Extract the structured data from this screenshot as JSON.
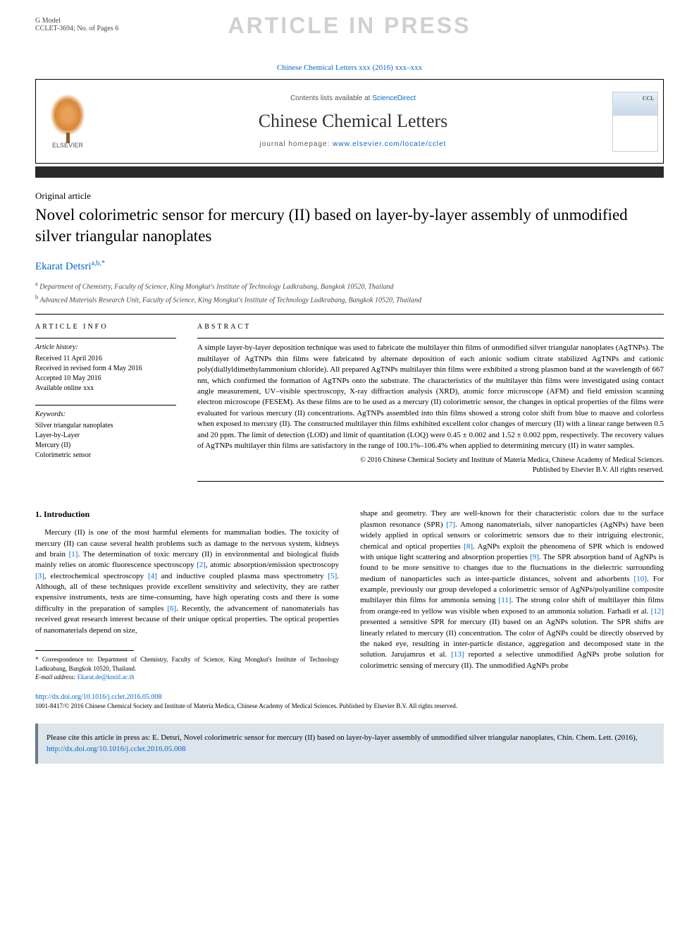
{
  "gmodel": {
    "l1": "G Model",
    "l2": "CCLET-3694; No. of Pages 6"
  },
  "watermark": "ARTICLE IN PRESS",
  "journal_ref": "Chinese Chemical Letters xxx (2016) xxx–xxx",
  "header": {
    "elsevier": "ELSEVIER",
    "contents_pre": "Contents lists available at ",
    "contents_link": "ScienceDirect",
    "journal": "Chinese Chemical Letters",
    "homepage_pre": "journal homepage: ",
    "homepage_url": "www.elsevier.com/locate/cclet"
  },
  "article_type": "Original article",
  "title": "Novel colorimetric sensor for mercury (II) based on layer-by-layer assembly of unmodified silver triangular nanoplates",
  "author": {
    "name": "Ekarat Detsri",
    "sup": "a,b,",
    "corr": "*"
  },
  "affiliations": {
    "a": "Department of Chemistry, Faculty of Science, King Mongkut's Institute of Technology Ladkrabang, Bangkok 10520, Thailand",
    "b": "Advanced Materials Research Unit, Faculty of Science, King Mongkut's Institute of Technology Ladkrabang, Bangkok 10520, Thailand"
  },
  "info": {
    "head": "ARTICLE INFO",
    "history_h": "Article history:",
    "h1": "Received 11 April 2016",
    "h2": "Received in revised form 4 May 2016",
    "h3": "Accepted 10 May 2016",
    "h4": "Available online xxx",
    "kw_h": "Keywords:",
    "k1": "Silver triangular nanoplates",
    "k2": "Layer-by-Layer",
    "k3": "Mercury (II)",
    "k4": "Colorimetric sensor"
  },
  "abstract": {
    "head": "ABSTRACT",
    "text": "A simple layer-by-layer deposition technique was used to fabricate the multilayer thin films of unmodified silver triangular nanoplates (AgTNPs). The multilayer of AgTNPs thin films were fabricated by alternate deposition of each anionic sodium citrate stabilized AgTNPs and cationic poly(diallyldimethylammonium chloride). All prepared AgTNPs multilayer thin films were exhibited a strong plasmon band at the wavelength of 667 nm, which confirmed the formation of AgTNPs onto the substrate. The characteristics of the multilayer thin films were investigated using contact angle measurement, UV–visible spectroscopy, X-ray diffraction analysis (XRD), atomic force microscope (AFM) and field emission scanning electron microscope (FESEM). As these films are to be used as a mercury (II) colorimetric sensor, the changes in optical properties of the films were evaluated for various mercury (II) concentrations. AgTNPs assembled into thin films showed a strong color shift from blue to mauve and colorless when exposed to mercury (II). The constructed multilayer thin films exhibited excellent color changes of mercury (II) with a linear range between 0.5 and 20 ppm. The limit of detection (LOD) and limit of quantitation (LOQ) were 0.45 ± 0.002 and 1.52 ± 0.002 ppm, respectively. The recovery values of AgTNPs multilayer thin films are satisfactory in the range of 100.1%–106.4% when applied to determining mercury (II) in water samples.",
    "copy1": "© 2016 Chinese Chemical Society and Institute of Materia Medica, Chinese Academy of Medical Sciences.",
    "copy2": "Published by Elsevier B.V. All rights reserved."
  },
  "section1": {
    "head": "1. Introduction"
  },
  "col1": {
    "p1a": "Mercury (II) is one of the most harmful elements for mammalian bodies. The toxicity of mercury (II) can cause several health problems such as damage to the nervous system, kidneys and brain ",
    "r1": "[1]",
    "p1b": ". The determination of toxic mercury (II) in environmental and biological fluids mainly relies on atomic fluorescence spectroscopy ",
    "r2": "[2]",
    "p1c": ", atomic absorption/emission spectroscopy ",
    "r3": "[3]",
    "p1d": ", electrochemical spectroscopy ",
    "r4": "[4]",
    "p1e": " and inductive coupled plasma mass spectrometry ",
    "r5": "[5]",
    "p1f": ". Although, all of these techniques provide excellent sensitivity and selectivity, they are rather expensive instruments, tests are time-consuming, have high operating costs and there is some difficulty in the preparation of samples ",
    "r6": "[6]",
    "p1g": ". Recently, the advancement of nanomaterials has received great research interest because of their unique optical properties. The optical properties of nanomaterials depend on size,"
  },
  "col2": {
    "p1a": "shape and geometry. They are well-known for their characteristic colors due to the surface plasmon resonance (SPR) ",
    "r7": "[7]",
    "p1b": ". Among nanomaterials, silver nanoparticles (AgNPs) have been widely applied in optical sensors or colorimetric sensors due to their intriguing electronic, chemical and optical properties ",
    "r8": "[8]",
    "p1c": ". AgNPs exploit the phenomena of SPR which is endowed with unique light scattering and absorption properties ",
    "r9": "[9]",
    "p1d": ". The SPR absorption band of AgNPs is found to be more sensitive to changes due to the fluctuations in the dielectric surrounding medium of nanoparticles such as inter-particle distances, solvent and adsorbents ",
    "r10": "[10]",
    "p1e": ". For example, previously our group developed a colorimetric sensor of AgNPs/polyaniline composite multilayer thin films for ammonia sensing ",
    "r11": "[11]",
    "p1f": ". The strong color shift of multilayer thin films from orange-red to yellow was visible when exposed to an ammonia solution. Farhadi et al. ",
    "r12": "[12]",
    "p1g": " presented a sensitive SPR for mercury (II) based on an AgNPs solution. The SPR shifts are linearly related to mercury (II) concentration. The color of AgNPs could be directly observed by the naked eye, resulting in inter-particle distance, aggregation and decomposed state in the solution. Jarujamrus et al. ",
    "r13": "[13]",
    "p1h": " reported a selective unmodified AgNPs probe solution for colorimetric sensing of mercury (II). The unmodified AgNPs probe"
  },
  "footnote": {
    "corr_pre": "* Correspondence to: Department of Chemistry, Faculty of Science, King Mongkut's Institute of Technology Ladkrabang, Bangkok 10520, Thailand.",
    "email_label": "E-mail address: ",
    "email": "Ekarat.de@kmitl.ac.th"
  },
  "doi": {
    "url": "http://dx.doi.org/10.1016/j.cclet.2016.05.008",
    "copy": "1001-8417/© 2016 Chinese Chemical Society and Institute of Materia Medica, Chinese Academy of Medical Sciences. Published by Elsevier B.V. All rights reserved."
  },
  "citebox": {
    "pre": "Please cite this article in press as: E. Detsri, Novel colorimetric sensor for mercury (II) based on layer-by-layer assembly of unmodified silver triangular nanoplates, Chin. Chem. Lett. (2016), ",
    "url": "http://dx.doi.org/10.1016/j.cclet.2016.05.008"
  }
}
